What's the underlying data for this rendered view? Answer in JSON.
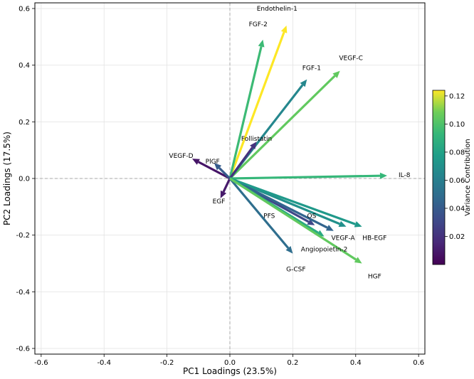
{
  "chart_data": {
    "type": "biplot",
    "xlabel": "PC1 Loadings (23.5%)",
    "ylabel": "PC2 Loadings (17.5%)",
    "xlim": [
      -0.62,
      0.62
    ],
    "ylim": [
      -0.62,
      0.62
    ],
    "xticks": [
      -0.6,
      -0.4,
      -0.2,
      0.0,
      0.2,
      0.4,
      0.6
    ],
    "xtick_labels": [
      "-0.6",
      "-0.4",
      "-0.2",
      "0.0",
      "0.2",
      "0.4",
      "0.6"
    ],
    "yticks": [
      -0.6,
      -0.4,
      -0.2,
      0.0,
      0.2,
      0.4,
      0.6
    ],
    "ytick_labels": [
      "-0.6",
      "-0.4",
      "-0.2",
      "0.0",
      "0.2",
      "0.4",
      "0.6"
    ],
    "grid": true,
    "colorbar": {
      "label": "Variance Contribution",
      "min": 0.0,
      "max": 0.124,
      "ticks": [
        0.02,
        0.04,
        0.06,
        0.08,
        0.1,
        0.12
      ],
      "tick_labels": [
        "0.02",
        "0.04",
        "0.06",
        "0.08",
        "0.10",
        "0.12"
      ]
    },
    "vectors": [
      {
        "name": "Endothelin-1",
        "x": 0.18,
        "y": 0.54,
        "variance": 0.124,
        "label_x": 0.15,
        "label_y": 0.6
      },
      {
        "name": "FGF-2",
        "x": 0.105,
        "y": 0.49,
        "variance": 0.095,
        "label_x": 0.09,
        "label_y": 0.545
      },
      {
        "name": "VEGF-C",
        "x": 0.35,
        "y": 0.38,
        "variance": 0.105,
        "label_x": 0.385,
        "label_y": 0.425
      },
      {
        "name": "FGF-1",
        "x": 0.245,
        "y": 0.35,
        "variance": 0.065,
        "label_x": 0.26,
        "label_y": 0.39
      },
      {
        "name": "Follistatin",
        "x": 0.085,
        "y": 0.13,
        "variance": 0.02,
        "label_x": 0.085,
        "label_y": 0.14
      },
      {
        "name": "VEGF-D",
        "x": -0.12,
        "y": 0.07,
        "variance": 0.008,
        "label_x": -0.155,
        "label_y": 0.08
      },
      {
        "name": "PlGF",
        "x": -0.05,
        "y": 0.055,
        "variance": 0.04,
        "label_x": -0.055,
        "label_y": 0.06
      },
      {
        "name": "IL-8",
        "x": 0.5,
        "y": 0.01,
        "variance": 0.093,
        "label_x": 0.555,
        "label_y": 0.012
      },
      {
        "name": "EGF",
        "x": -0.03,
        "y": -0.07,
        "variance": 0.01,
        "label_x": -0.035,
        "label_y": -0.08
      },
      {
        "name": "PFS",
        "x": 0.27,
        "y": -0.165,
        "variance": 0.03,
        "label_x": 0.125,
        "label_y": -0.132
      },
      {
        "name": "OS",
        "x": 0.37,
        "y": -0.17,
        "variance": 0.07,
        "label_x": 0.26,
        "label_y": -0.132
      },
      {
        "name": "VEGF-A",
        "x": 0.33,
        "y": -0.185,
        "variance": 0.045,
        "label_x": 0.36,
        "label_y": -0.21
      },
      {
        "name": "HB-EGF",
        "x": 0.42,
        "y": -0.17,
        "variance": 0.075,
        "label_x": 0.46,
        "label_y": -0.21
      },
      {
        "name": "Angiopoietin-2",
        "x": 0.3,
        "y": -0.205,
        "variance": 0.085,
        "label_x": 0.3,
        "label_y": -0.25
      },
      {
        "name": "G-CSF",
        "x": 0.2,
        "y": -0.265,
        "variance": 0.05,
        "label_x": 0.21,
        "label_y": -0.32
      },
      {
        "name": "HGF",
        "x": 0.42,
        "y": -0.3,
        "variance": 0.105,
        "label_x": 0.46,
        "label_y": -0.345
      }
    ]
  }
}
